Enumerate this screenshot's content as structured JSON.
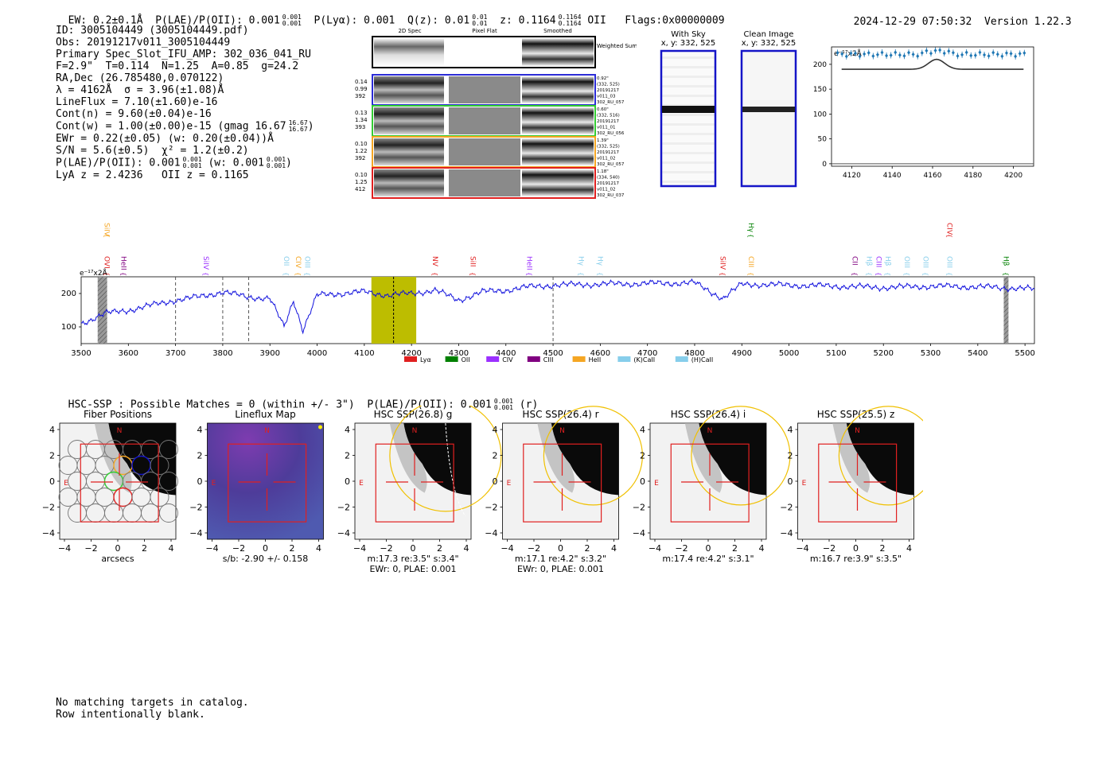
{
  "header": {
    "ew": "EW: 0.2±0.1Å",
    "plae_label": "P(LAE)/P(OII): 0.001",
    "plae_sup": "0.001",
    "plae_sub": "0.001",
    "plya": "P(Lyα): 0.001",
    "qz_label": "Q(z): 0.01",
    "qz_sup": "0.01",
    "qz_sub": "0.01",
    "z_label": "z: 0.1164",
    "z_sup": "0.1164",
    "z_sub": "0.1164",
    "z_line": "OII",
    "flags": "Flags:0x00000009",
    "timestamp": "2024-12-29 07:50:32",
    "version": "Version 1.22.3"
  },
  "info": {
    "id": "ID: 3005104449 (3005104449.pdf)",
    "obs": "Obs: 20191217v011_3005104449",
    "primary": "Primary Spec_Slot_IFU_AMP: 302_036_041_RU",
    "fit": "F=2.9\"  T=0.114  N=1.25  A=0.85  g=24.2",
    "radec": "RA,Dec (26.785480,0.070122)",
    "lambda": "λ = 4162Å  σ = 3.96(±1.08)Å",
    "lineflux": "LineFlux = 7.10(±1.60)e-16",
    "cont_n": "Cont(n) = 9.60(±0.04)e-16",
    "cont_w": "Cont(w) = 1.00(±0.00)e-15 (gmag 16.67",
    "cont_w_sup": "16.67",
    "cont_w_sub": "16.67",
    "ewr": "EWr = 0.22(±0.05) (w: 0.20(±0.04))Å",
    "sn": "S/N = 5.6(±0.5)  χ² = 1.2(±0.2)",
    "plae": "P(LAE)/P(OII): 0.001",
    "plae_sup": "0.001",
    "plae_sub": "0.001",
    "plae_w": "(w: 0.001",
    "plae_w_sup": "0.001",
    "plae_w_sub": "0.001",
    "lya_z": "LyA z = 2.4236   OII z = 0.1165"
  },
  "cutouts": {
    "col_headers": [
      "2D Spec",
      "Pixel Flat",
      "Smoothed"
    ],
    "weighted_sum": "Weighted Sum",
    "rows": [
      {
        "left": [
          "0.14",
          "0.99",
          "392"
        ],
        "right": [
          "0.92\"",
          "(332, 525)",
          "20191217",
          "v011_03",
          "302_RU_057"
        ],
        "color": "#2b2bd6"
      },
      {
        "left": [
          "0.13",
          "1.34",
          "393"
        ],
        "right": [
          "0.60\"",
          "(332, 516)",
          "20191217",
          "v011_01",
          "302_RU_056"
        ],
        "color": "#33cc33"
      },
      {
        "left": [
          "0.10",
          "1.22",
          "392"
        ],
        "right": [
          "1.39\"",
          "(332, 525)",
          "20191217",
          "v011_02",
          "302_RU_057"
        ],
        "color": "#f5a623"
      },
      {
        "left": [
          "0.10",
          "1.25",
          "412"
        ],
        "right": [
          "1.18\"",
          "(334, 540)",
          "20191217",
          "v011_02",
          "302_RU_037"
        ],
        "color": "#e02020"
      }
    ]
  },
  "sky_panels": {
    "with_sky_title": "With Sky",
    "with_sky_coords": "x, y: 332, 525",
    "clean_title": "Clean Image",
    "clean_coords": "x, y: 332, 525"
  },
  "zoom_chart": {
    "ylabel": "e⁻¹⁷x2Å",
    "yticks": [
      "200",
      "150",
      "100",
      "50",
      "0"
    ],
    "xticks": [
      "4120",
      "4140",
      "4160",
      "4180",
      "4200"
    ]
  },
  "chart_data": {
    "type": "line",
    "title": "",
    "ylabel": "e⁻¹⁷x2Å",
    "xlabel": "",
    "xlim": [
      3500,
      5520
    ],
    "ylim": [
      50,
      250
    ],
    "xticks": [
      3500,
      3600,
      3700,
      3800,
      3900,
      4000,
      4100,
      4200,
      4300,
      4400,
      4500,
      4600,
      4700,
      4800,
      4900,
      5000,
      5100,
      5200,
      5300,
      5400,
      5500
    ],
    "yticks": [
      100,
      200
    ],
    "x": [
      3500,
      3550,
      3600,
      3650,
      3700,
      3750,
      3800,
      3850,
      3900,
      3930,
      3950,
      3970,
      4000,
      4050,
      4100,
      4150,
      4200,
      4250,
      4300,
      4350,
      4400,
      4450,
      4500,
      4600,
      4700,
      4800,
      4860,
      4900,
      5000,
      5100,
      5200,
      5300,
      5400,
      5500,
      5520
    ],
    "series": [
      {
        "name": "spectrum",
        "color": "#1010dd",
        "values": [
          110,
          140,
          150,
          165,
          180,
          190,
          205,
          190,
          185,
          100,
          180,
          90,
          195,
          200,
          205,
          195,
          200,
          210,
          180,
          205,
          210,
          220,
          225,
          228,
          230,
          232,
          185,
          228,
          225,
          222,
          218,
          222,
          220,
          215,
          212
        ]
      }
    ],
    "highlight_band": {
      "from": 4115,
      "to": 4210,
      "color": "#bdbd00"
    },
    "peak_line": 4162,
    "dashed_lines": [
      3700,
      3800,
      3855,
      4500
    ],
    "hatched_regions": [
      [
        3535,
        3555
      ],
      [
        5455,
        5465
      ]
    ],
    "line_labels": [
      {
        "text": "OVI",
        "x": 3545,
        "color": "#e02020"
      },
      {
        "text": "SiIV",
        "x": 3545,
        "color": "#f5a623"
      },
      {
        "text": "HeII",
        "x": 3580,
        "color": "#800080"
      },
      {
        "text": "SiIV",
        "x": 3755,
        "color": "#9b30ff"
      },
      {
        "text": "OII",
        "x": 3925,
        "color": "#87ceeb"
      },
      {
        "text": "CIV",
        "x": 3950,
        "color": "#f5a623"
      },
      {
        "text": "OIII",
        "x": 3970,
        "color": "#87ceeb"
      },
      {
        "text": "NV",
        "x": 4240,
        "color": "#e02020"
      },
      {
        "text": "SiII",
        "x": 4320,
        "color": "#e02020"
      },
      {
        "text": "HeII",
        "x": 4440,
        "color": "#9b30ff"
      },
      {
        "text": "Hγ",
        "x": 4550,
        "color": "#87ceeb"
      },
      {
        "text": "Hγ",
        "x": 4590,
        "color": "#87ceeb"
      },
      {
        "text": "SiIV",
        "x": 4850,
        "color": "#e02020"
      },
      {
        "text": "CIII",
        "x": 4910,
        "color": "#f5a623"
      },
      {
        "text": "Hγ",
        "x": 4910,
        "color": "#008000"
      },
      {
        "text": "CII",
        "x": 5130,
        "color": "#800080"
      },
      {
        "text": "Hβ",
        "x": 5160,
        "color": "#87ceeb"
      },
      {
        "text": "CIII",
        "x": 5180,
        "color": "#9b30ff"
      },
      {
        "text": "Hβ",
        "x": 5200,
        "color": "#87ceeb"
      },
      {
        "text": "OIII",
        "x": 5240,
        "color": "#87ceeb"
      },
      {
        "text": "OIII",
        "x": 5280,
        "color": "#87ceeb"
      },
      {
        "text": "OIII",
        "x": 5330,
        "color": "#87ceeb"
      },
      {
        "text": "CIV",
        "x": 5330,
        "color": "#e02020"
      },
      {
        "text": "Hβ",
        "x": 5450,
        "color": "#008000"
      }
    ],
    "legend": [
      {
        "label": "Lyα",
        "color": "#e02020"
      },
      {
        "label": "OII",
        "color": "#008000"
      },
      {
        "label": "CIV",
        "color": "#9b30ff"
      },
      {
        "label": "CIII",
        "color": "#800080"
      },
      {
        "label": "HeII",
        "color": "#f5a623"
      },
      {
        "label": "(K)CaII",
        "color": "#87ceeb"
      },
      {
        "label": "(H)CaII",
        "color": "#87ceeb"
      }
    ],
    "zoom": {
      "xlim": [
        4110,
        4210
      ],
      "ylim": [
        -5,
        235
      ],
      "markers_y": 220,
      "fit_baseline": 190,
      "fit_peak": 210,
      "fit_center": 4162
    }
  },
  "hsc": {
    "title": "HSC-SSP : Possible Matches = 0 (within +/- 3\")  P(LAE)/P(OII): 0.001",
    "title_sup": "0.001",
    "title_sub": "0.001",
    "title_band": "(r)",
    "panels": [
      {
        "title": "Fiber Positions",
        "cap1": "arcsecs",
        "cap2": ""
      },
      {
        "title": "Lineflux Map",
        "cap1": "s/b: -2.90 +/- 0.158",
        "cap2": ""
      },
      {
        "title": "HSC SSP(26.8) g",
        "cap1": "m:17.3  re:3.5\"  s:3.4\"",
        "cap2": "EWr: 0, PLAE: 0.001"
      },
      {
        "title": "HSC SSP(26.4) r",
        "cap1": "m:17.1  re:4.2\"  s:3.2\"",
        "cap2": "EWr: 0, PLAE: 0.001"
      },
      {
        "title": "HSC SSP(26.4) i",
        "cap1": "m:17.4  re:4.2\"  s:3.1\"",
        "cap2": ""
      },
      {
        "title": "HSC SSP(25.5) z",
        "cap1": "m:16.7  re:3.9\"  s:3.5\"",
        "cap2": ""
      }
    ],
    "axis_ticks": [
      "4",
      "2",
      "0",
      "−2",
      "−4"
    ],
    "x_ticks": [
      "−4",
      "−2",
      "0",
      "2",
      "4"
    ],
    "compass_n": "N",
    "compass_e": "E"
  },
  "footer": {
    "line1": "No matching targets in catalog.",
    "line2": "Row intentionally blank."
  }
}
